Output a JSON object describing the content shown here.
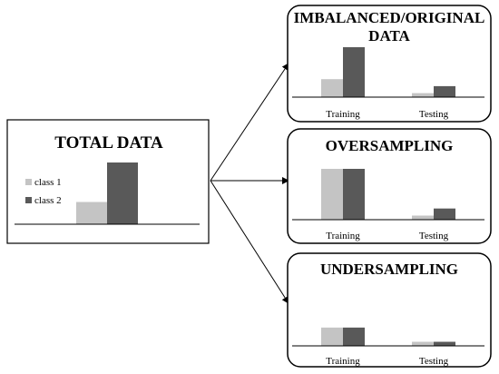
{
  "colors": {
    "class1": "#c4c4c4",
    "class2": "#595959",
    "stroke": "#000000",
    "background": "#ffffff"
  },
  "total": {
    "title": "TOTAL DATA",
    "legend": [
      {
        "label": "class 1",
        "color_key": "class1"
      },
      {
        "label": "class 2",
        "color_key": "class2"
      }
    ],
    "values": {
      "class1": 0.36,
      "class2": 1.0
    }
  },
  "panels": [
    {
      "title_lines": [
        "IMBALANCED/ORIGINAL",
        "DATA"
      ],
      "groups": [
        {
          "label": "Training",
          "class1": 0.36,
          "class2": 1.0
        },
        {
          "label": "Testing",
          "class1": 0.08,
          "class2": 0.22
        }
      ]
    },
    {
      "title_lines": [
        "OVERSAMPLING"
      ],
      "groups": [
        {
          "label": "Training",
          "class1": 1.0,
          "class2": 1.0
        },
        {
          "label": "Testing",
          "class1": 0.08,
          "class2": 0.22
        }
      ]
    },
    {
      "title_lines": [
        "UNDERSAMPLING"
      ],
      "groups": [
        {
          "label": "Training",
          "class1": 0.36,
          "class2": 0.36
        },
        {
          "label": "Testing",
          "class1": 0.08,
          "class2": 0.08
        }
      ]
    }
  ]
}
